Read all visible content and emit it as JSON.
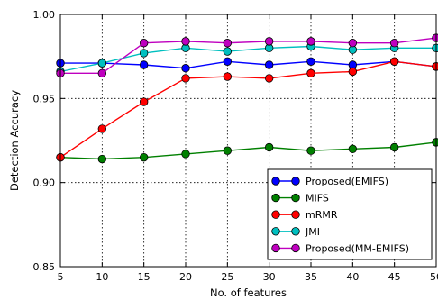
{
  "chart_data": {
    "type": "line",
    "title": "",
    "xlabel": "No. of features",
    "ylabel": "Detection Accuracy",
    "xlim": [
      5,
      50
    ],
    "ylim": [
      0.85,
      1.0
    ],
    "x": [
      5,
      10,
      15,
      20,
      25,
      30,
      35,
      40,
      45,
      50
    ],
    "xticks": [
      "5",
      "10",
      "15",
      "20",
      "25",
      "30",
      "35",
      "40",
      "45",
      "50"
    ],
    "yticks": [
      "0.85",
      "0.90",
      "0.95",
      "1.00"
    ],
    "grid": true,
    "legend_position": "bottom-right",
    "series": [
      {
        "name": "Proposed(EMIFS)",
        "color": "#0000ff",
        "values": [
          0.971,
          0.971,
          0.97,
          0.968,
          0.972,
          0.97,
          0.972,
          0.97,
          0.972,
          0.969
        ]
      },
      {
        "name": "MIFS",
        "color": "#008000",
        "values": [
          0.915,
          0.914,
          0.915,
          0.917,
          0.919,
          0.921,
          0.919,
          0.92,
          0.921,
          0.924
        ]
      },
      {
        "name": "mRMR",
        "color": "#ff0000",
        "values": [
          0.915,
          0.932,
          0.948,
          0.962,
          0.963,
          0.962,
          0.965,
          0.966,
          0.972,
          0.969
        ]
      },
      {
        "name": "JMI",
        "color": "#00bfbf",
        "values": [
          0.966,
          0.971,
          0.977,
          0.98,
          0.978,
          0.98,
          0.981,
          0.979,
          0.98,
          0.98
        ]
      },
      {
        "name": "Proposed(MM-EMIFS)",
        "color": "#bf00bf",
        "values": [
          0.965,
          0.965,
          0.983,
          0.984,
          0.983,
          0.984,
          0.984,
          0.983,
          0.983,
          0.986
        ]
      }
    ]
  }
}
